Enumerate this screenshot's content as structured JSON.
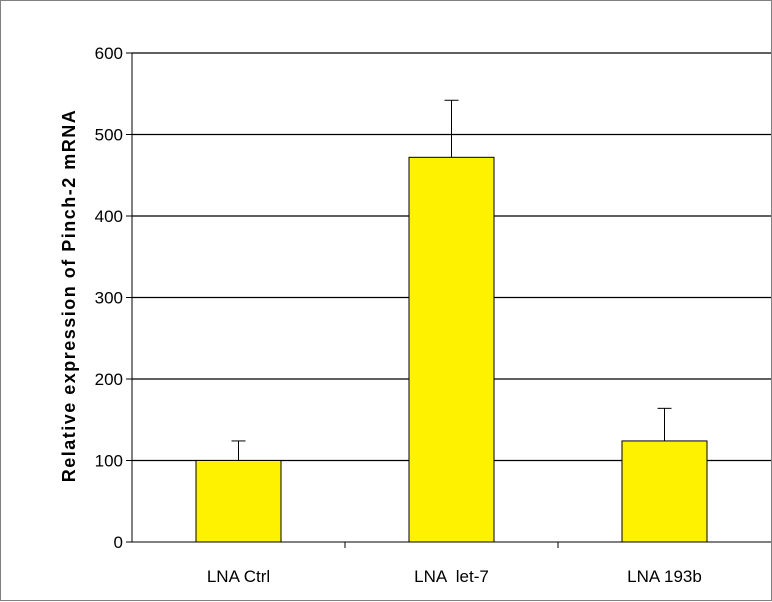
{
  "chart_data": {
    "type": "bar",
    "title": "",
    "xlabel": "",
    "ylabel": "Relative expression of Pinch-2 mRNA",
    "categories": [
      "LNA Ctrl",
      "LNA  let-7",
      "LNA 193b"
    ],
    "series": [
      {
        "values": [
          100,
          472,
          124
        ],
        "error": [
          24,
          70,
          40
        ]
      }
    ],
    "y_ticks": [
      "0",
      "100",
      "200",
      "300",
      "400",
      "500",
      "600"
    ],
    "ylim": [
      0,
      600
    ],
    "grid": true,
    "bar_color": "#FFF200",
    "bar_edge_color": "#000000",
    "legend": "none"
  }
}
